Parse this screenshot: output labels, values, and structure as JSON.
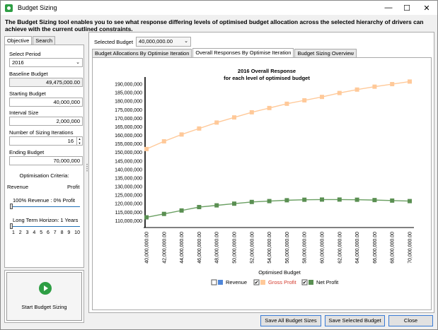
{
  "window": {
    "title": "Budget Sizing",
    "minimize": "—",
    "maximize": "☐",
    "close": "✕"
  },
  "description": "The Budget Sizing tool enables you to see what response differing levels of optimised budget allocation across the selected hierarchy of drivers can achieve with the current outlined constraints.",
  "left_panel": {
    "tabs": [
      "Objective",
      "Search"
    ],
    "active_tab": "Objective",
    "select_period_label": "Select Period",
    "select_period_value": "2016",
    "baseline_label": "Baseline Budget",
    "baseline_value": "49,475,000.00",
    "starting_label": "Starting Budget",
    "starting_value": "40,000,000",
    "interval_label": "Interval Size",
    "interval_value": "2,000,000",
    "iterations_label": "Number of Sizing Iterations",
    "iterations_value": "16",
    "ending_label": "Ending Budget",
    "ending_value": "70,000,000",
    "criteria_label": "Optimisation Criteria:",
    "revenue_label": "Revenue",
    "profit_label": "Profit",
    "revenue_profit_text": "100% Revenue : 0% Profit",
    "horizon_text": "Long Term Horizon: 1 Years",
    "horizon_ticks": [
      "1",
      "2",
      "3",
      "4",
      "5",
      "6",
      "7",
      "8",
      "9",
      "10"
    ],
    "start_button_label": "Start Budget Sizing"
  },
  "right_panel": {
    "selected_budget_label": "Selected Budget",
    "selected_budget_value": "40,000,000.00",
    "tabs": [
      "Budget Allocations By Optimise Iteration",
      "Overall Responses By Optimise Iteration",
      "Budget Sizing Overview"
    ],
    "active_tab": "Overall Responses By Optimise Iteration"
  },
  "chart_data": {
    "type": "line",
    "title": "2016 Overall Response",
    "subtitle": "for each level of optimised budget",
    "xlabel": "Optimised Budget",
    "ylabel": "",
    "x": [
      "40,000,000.00",
      "42,000,000.00",
      "44,000,000.00",
      "46,000,000.00",
      "48,000,000.00",
      "50,000,000.00",
      "52,000,000.00",
      "54,000,000.00",
      "56,000,000.00",
      "58,000,000.00",
      "60,000,000.00",
      "62,000,000.00",
      "64,000,000.00",
      "66,000,000.00",
      "68,000,000.00",
      "70,000,000.00"
    ],
    "yticks": [
      "110,000,000",
      "115,000,000",
      "120,000,000",
      "125,000,000",
      "130,000,000",
      "135,000,000",
      "140,000,000",
      "145,000,000",
      "150,000,000",
      "155,000,000",
      "160,000,000",
      "165,000,000",
      "170,000,000",
      "175,000,000",
      "180,000,000",
      "185,000,000",
      "190,000,000"
    ],
    "ylim": [
      108500000,
      192500000
    ],
    "grid": false,
    "selected_x_index": 0,
    "series": [
      {
        "name": "Gross Profit",
        "color": "#ffc999",
        "marker_color": "#ffc999",
        "visible": true,
        "values": [
          152000000,
          156500000,
          160500000,
          164000000,
          167500000,
          170500000,
          173500000,
          176000000,
          178500000,
          180500000,
          182500000,
          184800000,
          186800000,
          188500000,
          190000000,
          191500000
        ]
      },
      {
        "name": "Net Profit",
        "color": "#6a9f62",
        "marker_color": "#5a8f52",
        "visible": true,
        "values": [
          112000000,
          114000000,
          116000000,
          118000000,
          119000000,
          120000000,
          121000000,
          121500000,
          122000000,
          122300000,
          122400000,
          122400000,
          122300000,
          122100000,
          121800000,
          121500000
        ]
      }
    ],
    "legend": [
      {
        "name": "Revenue",
        "color": "#4f86d9",
        "checked": false,
        "label_color": "#000000"
      },
      {
        "name": "Gross Profit",
        "color": "#ffc999",
        "checked": true,
        "label_color": "#d33a2c"
      },
      {
        "name": "Net Profit",
        "color": "#5a8f52",
        "checked": true,
        "label_color": "#000000"
      }
    ],
    "legend_position": "bottom"
  },
  "buttons": {
    "save_all": "Save All Budget Sizes",
    "save_selected": "Save Selected Budget",
    "close": "Close"
  }
}
